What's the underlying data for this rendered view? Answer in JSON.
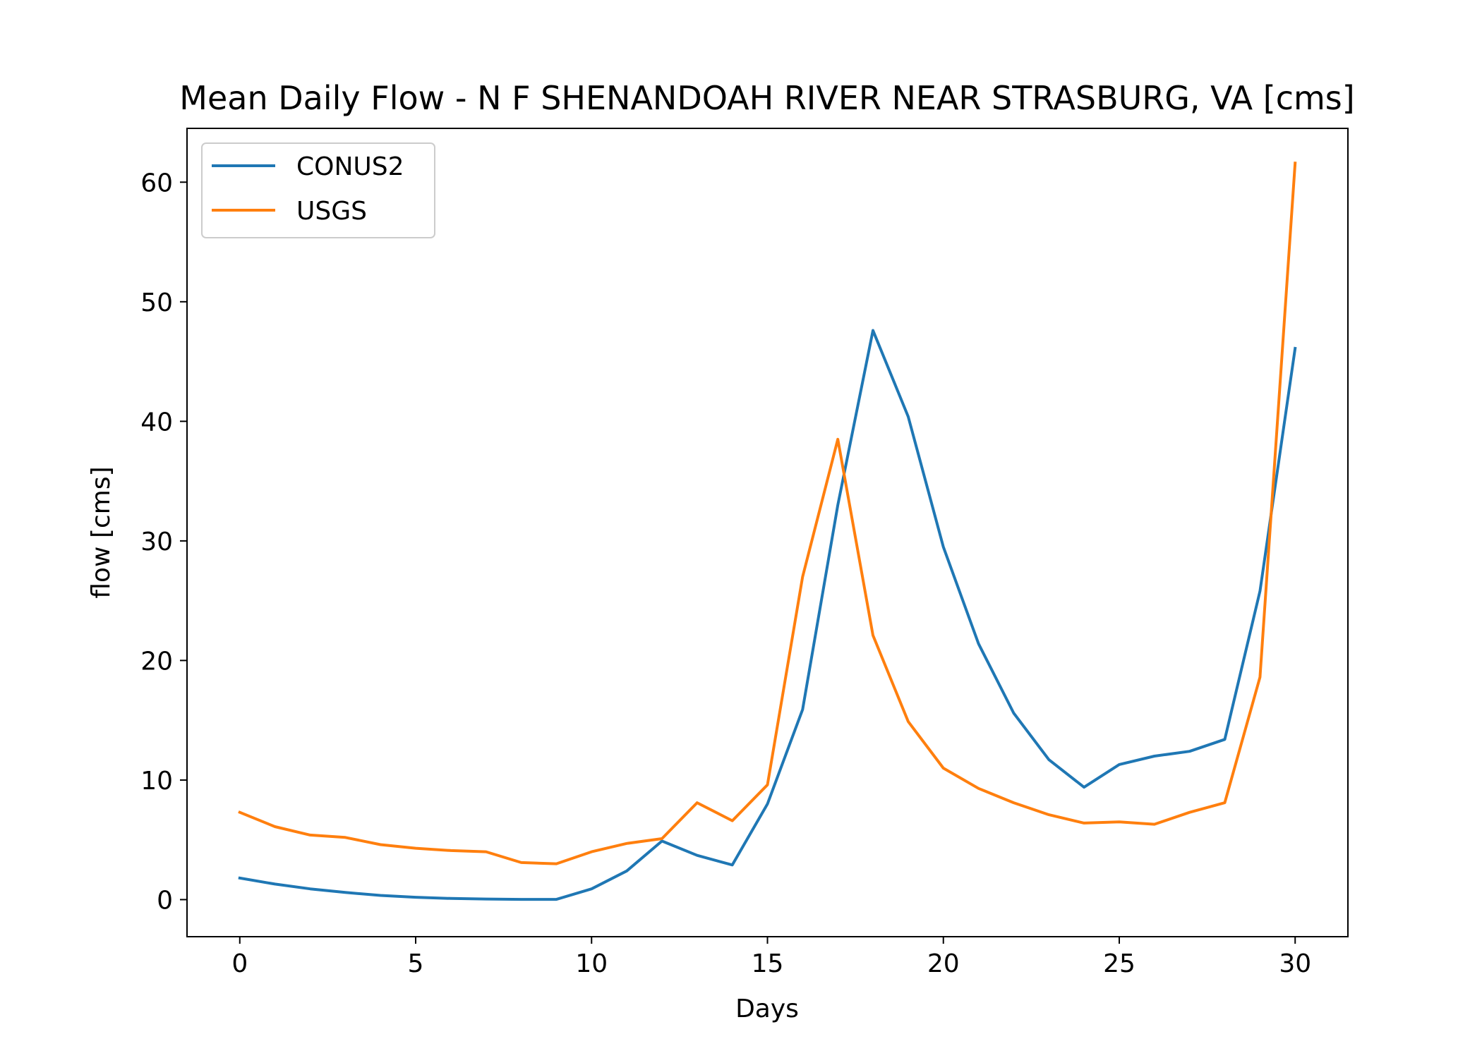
{
  "chart_data": {
    "type": "line",
    "title": "Mean Daily Flow - N F SHENANDOAH RIVER NEAR STRASBURG, VA [cms]",
    "xlabel": "Days",
    "ylabel": "flow [cms]",
    "xlim": [
      -1.5,
      31.5
    ],
    "ylim": [
      -3.1,
      64.5
    ],
    "xticks": [
      0,
      5,
      10,
      15,
      20,
      25,
      30
    ],
    "yticks": [
      0,
      10,
      20,
      30,
      40,
      50,
      60
    ],
    "grid": false,
    "legend_position": "top-left",
    "x": [
      0,
      1,
      2,
      3,
      4,
      5,
      6,
      7,
      8,
      9,
      10,
      11,
      12,
      13,
      14,
      15,
      16,
      17,
      18,
      19,
      20,
      21,
      22,
      23,
      24,
      25,
      26,
      27,
      28,
      29,
      30
    ],
    "series": [
      {
        "name": "CONUS2",
        "color": "#1f77b4",
        "values": [
          1.8,
          1.3,
          0.9,
          0.6,
          0.35,
          0.2,
          0.1,
          0.05,
          0.02,
          0.02,
          0.9,
          2.4,
          4.9,
          3.7,
          2.9,
          8.0,
          15.9,
          33.0,
          47.6,
          40.4,
          29.5,
          21.4,
          15.6,
          11.7,
          9.4,
          11.3,
          12.0,
          12.4,
          13.4,
          25.8,
          46.1
        ]
      },
      {
        "name": "USGS",
        "color": "#ff7f0e",
        "values": [
          7.3,
          6.1,
          5.4,
          5.2,
          4.6,
          4.3,
          4.1,
          4.0,
          3.1,
          3.0,
          4.0,
          4.7,
          5.1,
          8.1,
          6.6,
          9.6,
          27.0,
          38.5,
          22.1,
          14.9,
          11.0,
          9.3,
          8.1,
          7.1,
          6.4,
          6.5,
          6.3,
          7.3,
          8.1,
          18.6,
          61.6
        ]
      }
    ]
  }
}
